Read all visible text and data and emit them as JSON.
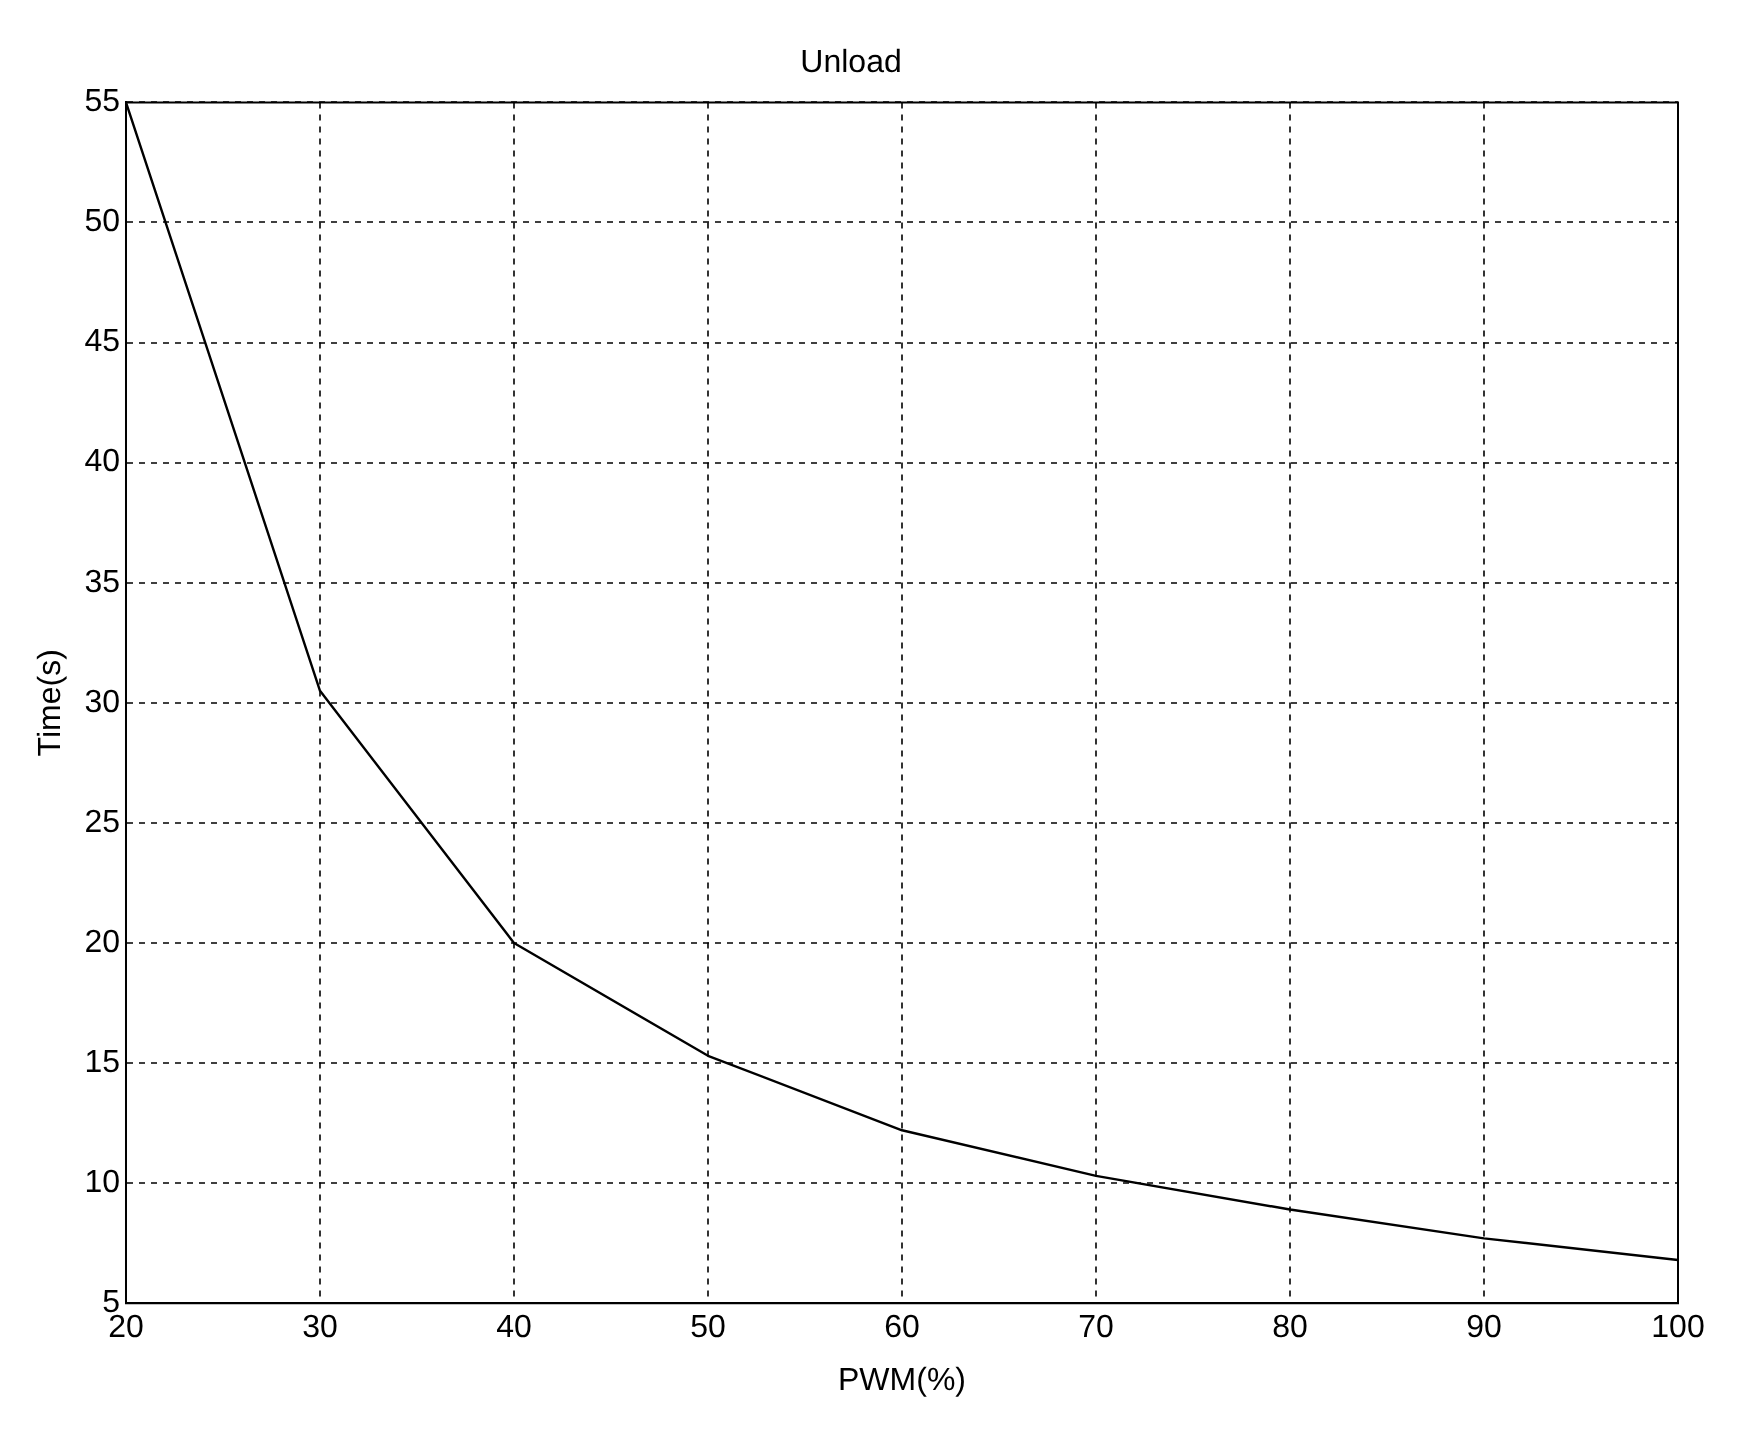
{
  "chart_data": {
    "type": "line",
    "title": "Unload",
    "xlabel": "PWM(%)",
    "ylabel": "Time(s)",
    "x": [
      20,
      30,
      40,
      50,
      60,
      70,
      80,
      90,
      100
    ],
    "series": [
      {
        "color": "#000000",
        "values": [
          55,
          30.5,
          20,
          15.3,
          12.2,
          10.3,
          8.9,
          7.7,
          6.8
        ]
      }
    ],
    "xlim": [
      20,
      100
    ],
    "xticks": [
      20,
      30,
      40,
      50,
      60,
      70,
      80,
      90,
      100
    ],
    "ylim": [
      5,
      55
    ],
    "yticks": [
      5,
      10,
      15,
      20,
      25,
      30,
      35,
      40,
      45,
      50,
      55
    ],
    "grid": true,
    "legend": false,
    "marker": "none",
    "line_style": "solid"
  }
}
